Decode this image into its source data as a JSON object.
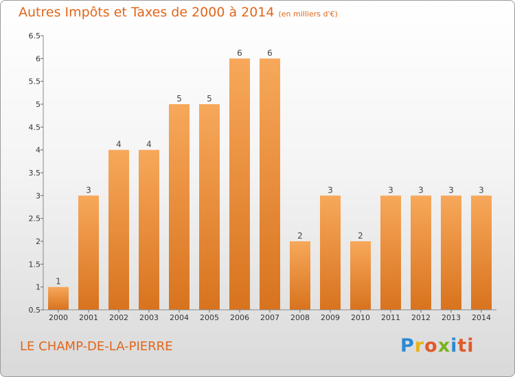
{
  "chart_data": {
    "type": "bar",
    "title": "Autres Impôts et Taxes de 2000 à 2014",
    "subtitle": "(en milliers d'€)",
    "categories": [
      "2000",
      "2001",
      "2002",
      "2003",
      "2004",
      "2005",
      "2006",
      "2007",
      "2008",
      "2009",
      "2010",
      "2011",
      "2012",
      "2013",
      "2014"
    ],
    "values": [
      1,
      3,
      4,
      4,
      5,
      5,
      6,
      6,
      2,
      3,
      2,
      3,
      3,
      3,
      3
    ],
    "data_labels": [
      "1",
      "3",
      "4",
      "4",
      "5",
      "5",
      "6",
      "6",
      "2",
      "3",
      "2",
      "3",
      "3",
      "3",
      "3"
    ],
    "ylim": [
      0.5,
      6.5
    ],
    "yticks": [
      "0.5",
      "1",
      "1.5",
      "2",
      "2.5",
      "3",
      "3.5",
      "4",
      "4.5",
      "5",
      "5.5",
      "6",
      "6.5"
    ],
    "grid": false,
    "bar_color_top": "#f7a85a",
    "bar_color_bottom": "#d8731e"
  },
  "footer": {
    "location": "LE CHAMP-DE-LA-PIERRE",
    "logo_letters": [
      "P",
      "r",
      "o",
      "x",
      "i",
      "ti"
    ]
  }
}
